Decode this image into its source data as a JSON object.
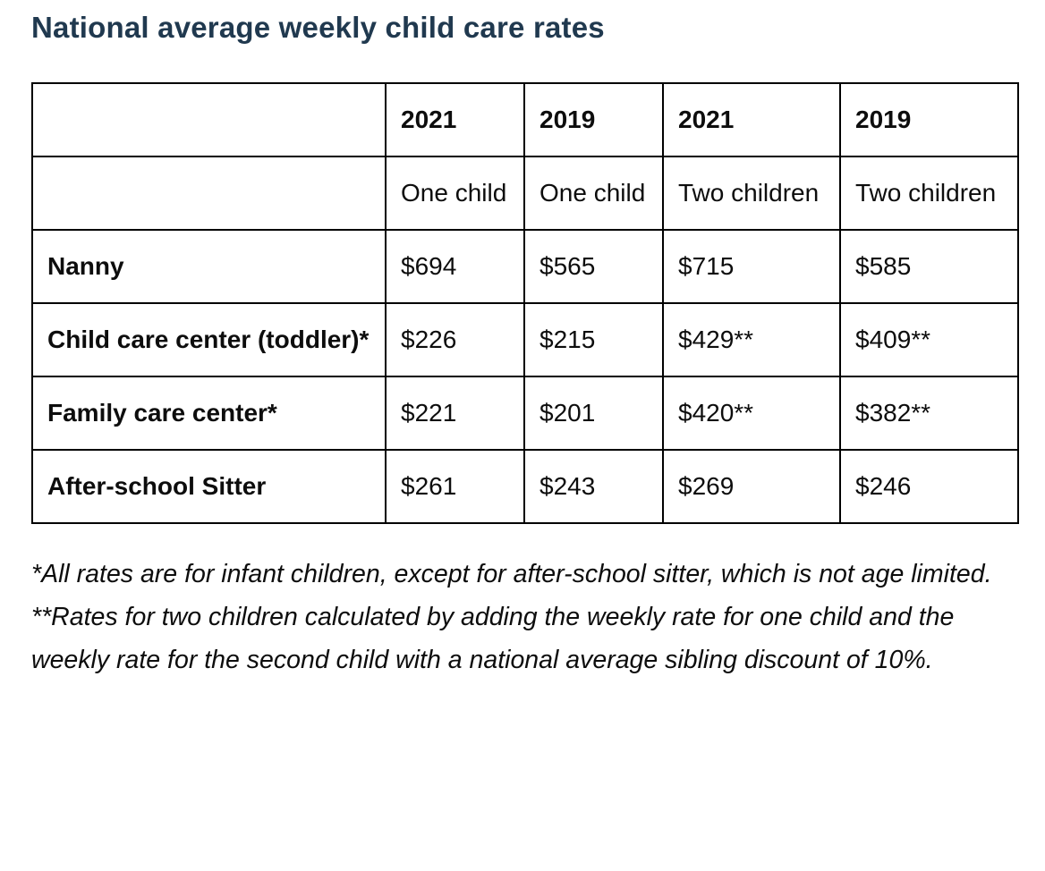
{
  "title": "National average weekly child care rates",
  "table": {
    "year_headers": [
      "2021",
      "2019",
      "2021",
      "2019"
    ],
    "child_headers": [
      "One child",
      "One child",
      "Two children",
      "Two children"
    ],
    "rows": [
      {
        "label": "Nanny",
        "values": [
          "$694",
          "$565",
          "$715",
          "$585"
        ]
      },
      {
        "label": "Child care center (toddler)*",
        "values": [
          "$226",
          "$215",
          "$429**",
          "$409**"
        ]
      },
      {
        "label": "Family care center*",
        "values": [
          "$221",
          "$201",
          "$420**",
          "$382**"
        ]
      },
      {
        "label": "After-school Sitter",
        "values": [
          "$261",
          "$243",
          "$269",
          "$246"
        ]
      }
    ]
  },
  "footnotes": [
    "*All rates are for infant children, except for after-school sitter, which is not age limited.",
    "**Rates for two children calculated by adding the weekly rate for one child and the weekly rate for the second child with a national average sibling discount of 10%."
  ],
  "colors": {
    "title": "#20394f",
    "text": "#0d0d0d",
    "border": "#000000",
    "background": "#ffffff"
  }
}
